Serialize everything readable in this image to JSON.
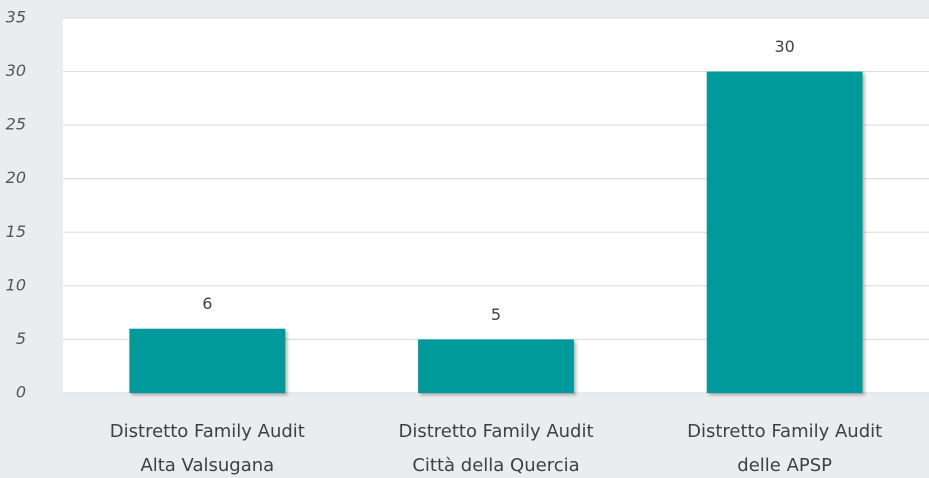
{
  "chart_data": {
    "type": "bar",
    "categories": [
      [
        "Distretto Family Audit",
        "Alta Valsugana"
      ],
      [
        "Distretto Family Audit",
        "Città della Quercia"
      ],
      [
        "Distretto Family Audit",
        "delle APSP"
      ]
    ],
    "values": [
      6,
      5,
      30
    ],
    "color": "#009a9a",
    "ylim": [
      0,
      35
    ],
    "yticks": [
      0,
      5,
      10,
      15,
      20,
      25,
      30,
      35
    ],
    "grid": true
  }
}
